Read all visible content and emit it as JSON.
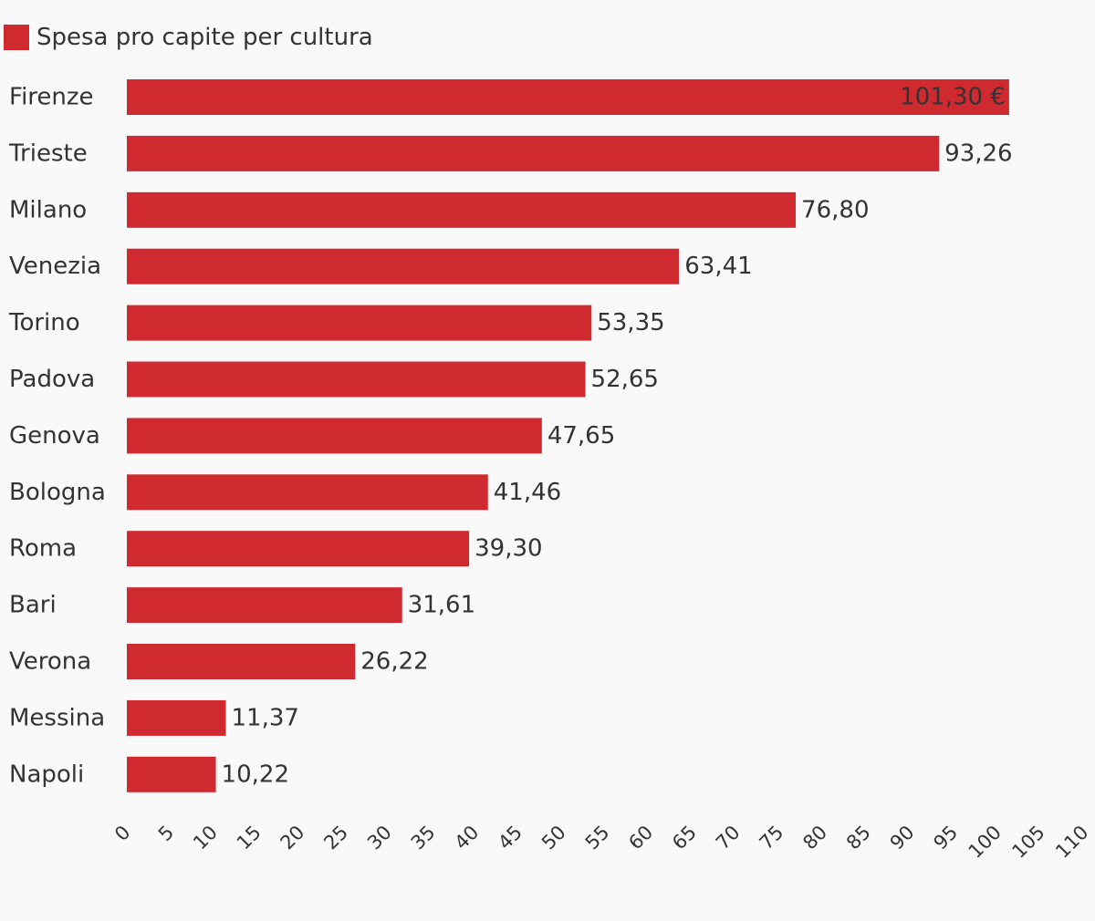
{
  "chart_data": {
    "type": "bar",
    "orientation": "horizontal",
    "categories": [
      "Firenze",
      "Trieste",
      "Milano",
      "Venezia",
      "Torino",
      "Padova",
      "Genova",
      "Bologna",
      "Roma",
      "Bari",
      "Verona",
      "Messina",
      "Napoli"
    ],
    "series": [
      {
        "name": "Spesa pro capite per cultura",
        "color": "#cf2a30",
        "values": [
          101.3,
          93.26,
          76.8,
          63.41,
          53.35,
          52.65,
          47.65,
          41.46,
          39.3,
          31.61,
          26.22,
          11.37,
          10.22
        ]
      }
    ],
    "data_labels": [
      "101,30 €",
      "93,26",
      "76,80",
      "63,41",
      "53,35",
      "52,65",
      "47,65",
      "41,46",
      "39,30",
      "31,61",
      "26,22",
      "11,37",
      "10,22"
    ],
    "xlim": [
      0,
      110
    ],
    "xticks": [
      "0",
      "5",
      "10",
      "15",
      "20",
      "25",
      "30",
      "35",
      "40",
      "45",
      "50",
      "55",
      "60",
      "65",
      "70",
      "75",
      "80",
      "85",
      "90",
      "95",
      "100",
      "105",
      "110"
    ],
    "legend_position": "top-left",
    "grid": false
  }
}
